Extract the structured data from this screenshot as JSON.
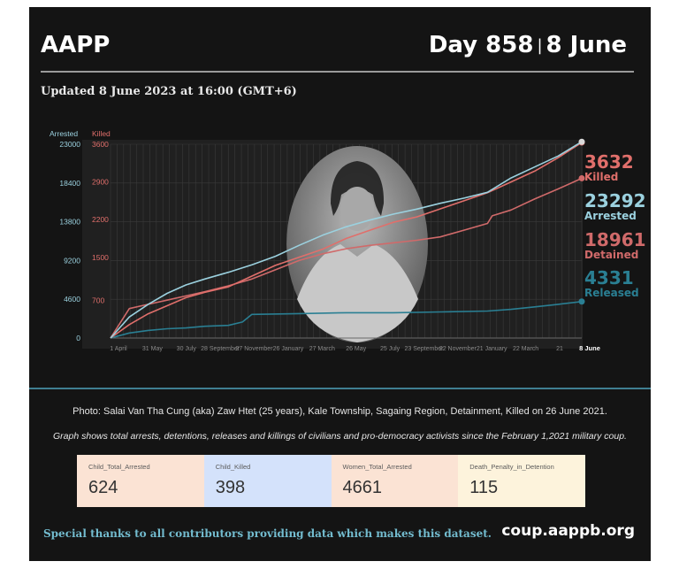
{
  "header": {
    "org": "AAPP",
    "day": "Day 858",
    "separator": "|",
    "date": "8 June"
  },
  "updated": "Updated 8 June 2023 at 16:00 (GMT+6)",
  "photo_caption": "Photo: Salai Van Tha Cung (aka) Zaw Htet (25 years), Kale Township, Sagaing Region, Detainment, Killed on 26 June 2021.",
  "graph_caption": "Graph shows total arrests, detentions, releases and killings of civilians and pro-democracy activists since the February 1,2021 military coup.",
  "stats": [
    {
      "label": "Child_Total_Arrested",
      "value": "624",
      "color": "#fbe3d4"
    },
    {
      "label": "Child_Killed",
      "value": "398",
      "color": "#d4e2fb"
    },
    {
      "label": "Women_Total_Arrested",
      "value": "4661",
      "color": "#fbe3d4"
    },
    {
      "label": "Death_Penalty_in_Detention",
      "value": "115",
      "color": "#fdf3dc"
    }
  ],
  "footer": {
    "thanks": "Special thanks to all contributors providing data which makes this dataset.",
    "url": "coup.aappb.org"
  },
  "colors": {
    "arrested": "#9bd1df",
    "killed": "#e06f6b",
    "detained": "#d06a6a",
    "released": "#2a7f93",
    "background": "#141414"
  },
  "chart_data": {
    "type": "line",
    "left_axis": {
      "label": "Arrested",
      "ticks": [
        0,
        4600,
        9200,
        13800,
        18400,
        23000
      ],
      "ylim": [
        0,
        23000
      ]
    },
    "right_axis": {
      "label": "Killed",
      "ticks": [
        0,
        700,
        1500,
        2200,
        2900,
        3600
      ],
      "ylim": [
        0,
        3600
      ]
    },
    "x_tick_labels": [
      "1 April",
      "31 May",
      "30 July",
      "28 September",
      "27 November",
      "26 January",
      "27 March",
      "26 May",
      "25 July",
      "23 September",
      "22 November",
      "21 January",
      "22 March",
      "21",
      "8 June"
    ],
    "x_index_range": [
      0,
      100
    ],
    "series": [
      {
        "name": "Arrested",
        "key": "arrested",
        "axis": "left",
        "x": [
          0,
          4,
          8,
          12,
          16,
          20,
          25,
          30,
          35,
          40,
          45,
          50,
          55,
          60,
          65,
          70,
          75,
          80,
          85,
          90,
          95,
          100
        ],
        "y": [
          0,
          2500,
          4000,
          5300,
          6300,
          7000,
          7800,
          8700,
          9700,
          11000,
          12200,
          13200,
          14000,
          14700,
          15300,
          16000,
          16600,
          17300,
          19000,
          20300,
          21600,
          23292
        ]
      },
      {
        "name": "Detained",
        "key": "detained",
        "axis": "left",
        "x": [
          0,
          4,
          8,
          12,
          16,
          20,
          25,
          30,
          35,
          40,
          45,
          50,
          55,
          60,
          65,
          70,
          75,
          80,
          81,
          85,
          90,
          95,
          100
        ],
        "y": [
          0,
          3500,
          4000,
          4500,
          5000,
          5500,
          6200,
          7000,
          8100,
          9200,
          10000,
          10600,
          11000,
          11300,
          11600,
          12000,
          12800,
          13600,
          14500,
          15200,
          16500,
          17700,
          18961
        ]
      },
      {
        "name": "Killed",
        "key": "killed",
        "axis": "right",
        "x": [
          0,
          4,
          8,
          12,
          16,
          20,
          25,
          30,
          35,
          40,
          45,
          50,
          55,
          60,
          65,
          70,
          75,
          80,
          85,
          90,
          95,
          100
        ],
        "y": [
          0,
          250,
          450,
          600,
          750,
          850,
          950,
          1150,
          1350,
          1500,
          1650,
          1850,
          2000,
          2150,
          2250,
          2400,
          2550,
          2700,
          2900,
          3100,
          3350,
          3632
        ]
      },
      {
        "name": "Released",
        "key": "released",
        "axis": "left",
        "x": [
          0,
          4,
          8,
          12,
          16,
          20,
          25,
          28,
          30,
          40,
          50,
          60,
          70,
          80,
          85,
          90,
          95,
          100
        ],
        "y": [
          0,
          600,
          900,
          1100,
          1200,
          1400,
          1500,
          1900,
          2800,
          2900,
          3000,
          3000,
          3100,
          3200,
          3400,
          3700,
          4000,
          4331
        ]
      }
    ],
    "end_labels": [
      {
        "value": "3632",
        "label": "Killed",
        "key": "killed"
      },
      {
        "value": "23292",
        "label": "Arrested",
        "key": "arrested"
      },
      {
        "value": "18961",
        "label": "Detained",
        "key": "detained"
      },
      {
        "value": "4331",
        "label": "Released",
        "key": "released"
      }
    ]
  }
}
